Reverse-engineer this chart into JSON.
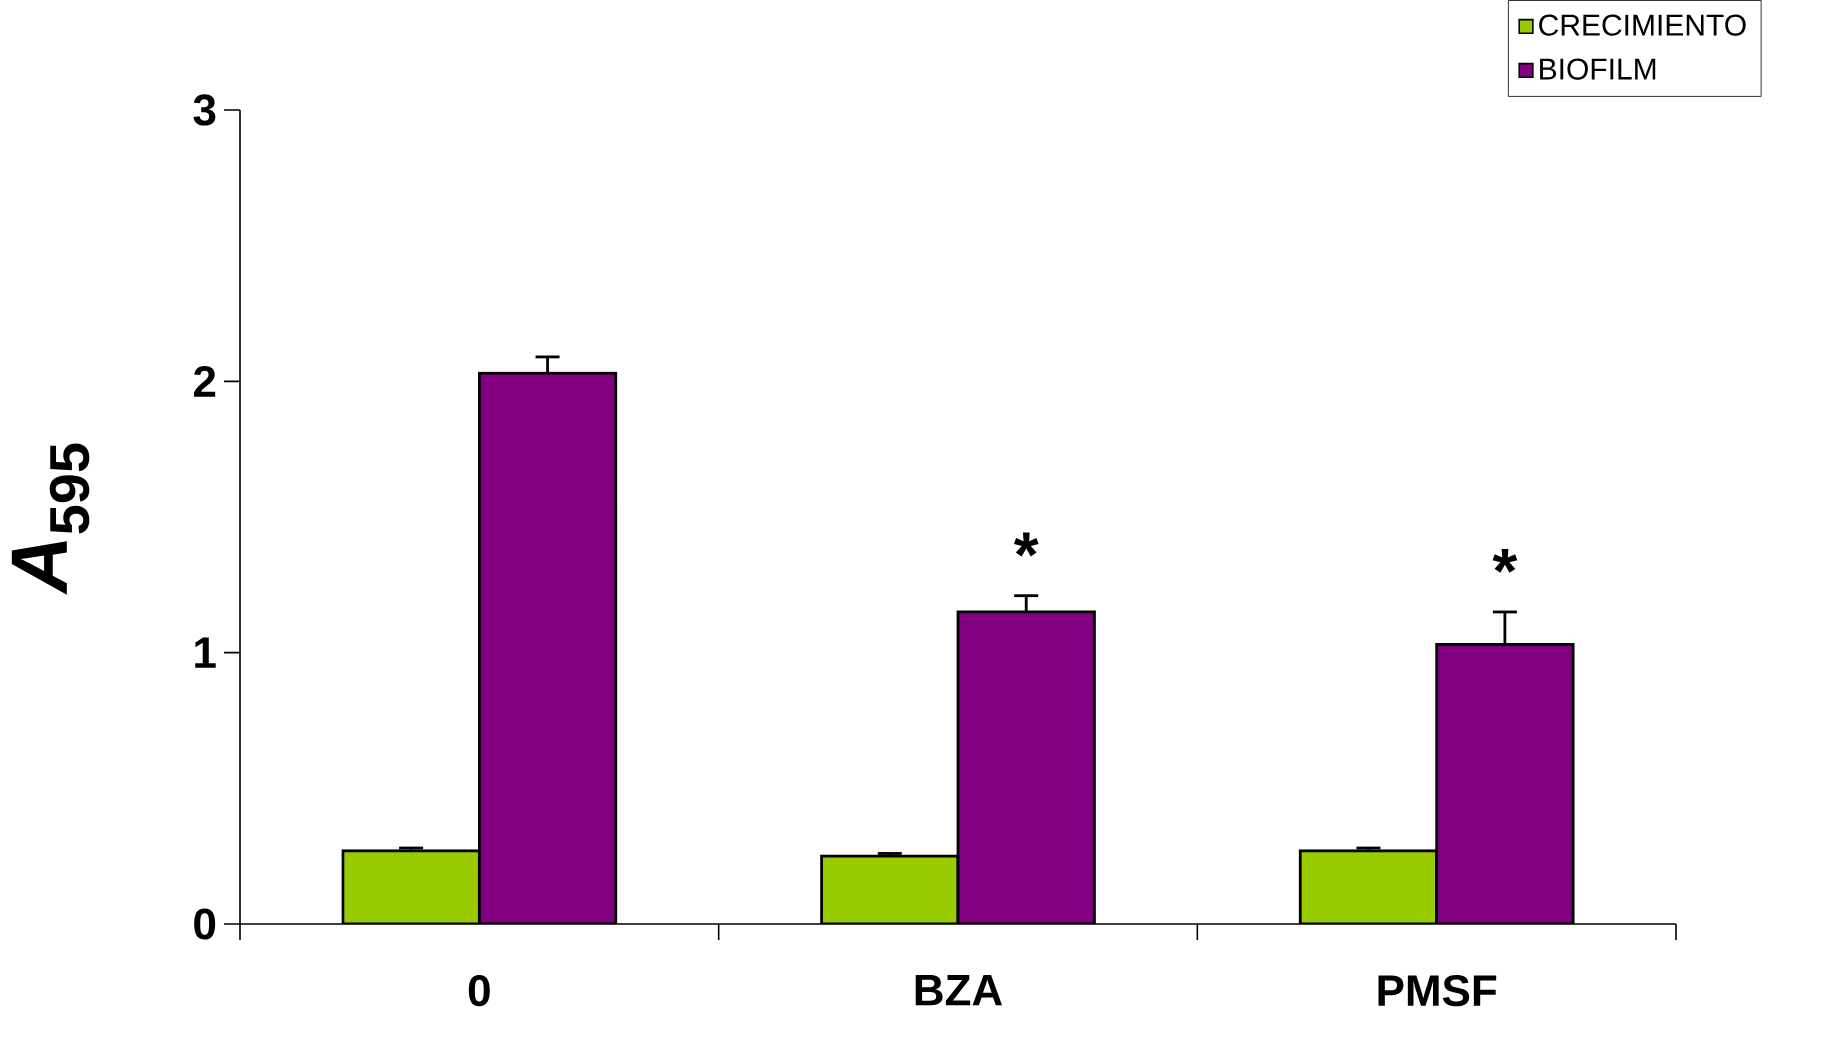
{
  "chart_data": {
    "type": "bar",
    "ylabel": "*A*$_{595}$",
    "categories": [
      "0",
      "BZA",
      "PMSF"
    ],
    "series": [
      {
        "name": "CRECIMIENTO",
        "color": "#99cc00",
        "values": [
          0.27,
          0.25,
          0.27
        ],
        "errors": [
          0.01,
          0.01,
          0.01
        ]
      },
      {
        "name": "BIOFILM",
        "color": "#800080",
        "values": [
          2.03,
          1.15,
          1.03
        ],
        "errors": [
          0.06,
          0.06,
          0.12
        ]
      }
    ],
    "ylim": [
      0,
      3
    ],
    "yticks": [
      0,
      1,
      2,
      3
    ],
    "annotations": [
      "*",
      "*"
    ],
    "legend": "top right",
    "grid": false
  }
}
